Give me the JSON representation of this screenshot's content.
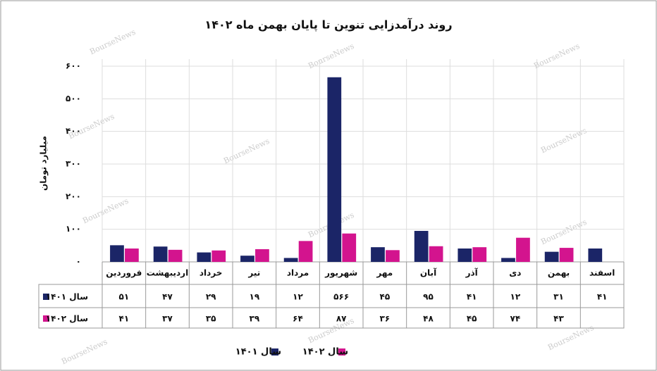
{
  "chart_data": {
    "type": "bar",
    "title": "روند درآمدزایی تنوین تا پایان بهمن ماه ۱۴۰۲",
    "y_label": "میلیارد تومان",
    "watermark": "BourseNews",
    "categories": [
      "فروردین",
      "اردیبهشت",
      "خرداد",
      "تیر",
      "مرداد",
      "شهریور",
      "مهر",
      "آبان",
      "آذر",
      "دی",
      "بهمن",
      "اسفند"
    ],
    "series": [
      {
        "name": "سال ۱۴۰۱",
        "color": "#1b2567",
        "values": [
          51,
          47,
          29,
          19,
          12,
          566,
          45,
          95,
          41,
          12,
          31,
          41
        ],
        "value_labels": [
          "۵۱",
          "۴۷",
          "۲۹",
          "۱۹",
          "۱۲",
          "۵۶۶",
          "۴۵",
          "۹۵",
          "۴۱",
          "۱۲",
          "۳۱",
          "۴۱"
        ]
      },
      {
        "name": "سال ۱۴۰۲",
        "color": "#d3148e",
        "values": [
          41,
          37,
          35,
          39,
          64,
          87,
          36,
          48,
          45,
          74,
          43,
          null
        ],
        "value_labels": [
          "۴۱",
          "۳۷",
          "۳۵",
          "۳۹",
          "۶۴",
          "۸۷",
          "۳۶",
          "۴۸",
          "۴۵",
          "۷۴",
          "۴۳",
          null
        ]
      }
    ],
    "ylim": [
      0,
      600
    ],
    "yticks": [
      {
        "value": 0,
        "label": "۰"
      },
      {
        "value": 100,
        "label": "۱۰۰"
      },
      {
        "value": 200,
        "label": "۲۰۰"
      },
      {
        "value": 300,
        "label": "۳۰۰"
      },
      {
        "value": 400,
        "label": "۴۰۰"
      },
      {
        "value": 500,
        "label": "۵۰۰"
      },
      {
        "value": 600,
        "label": "۶۰۰"
      }
    ],
    "grid": true
  }
}
